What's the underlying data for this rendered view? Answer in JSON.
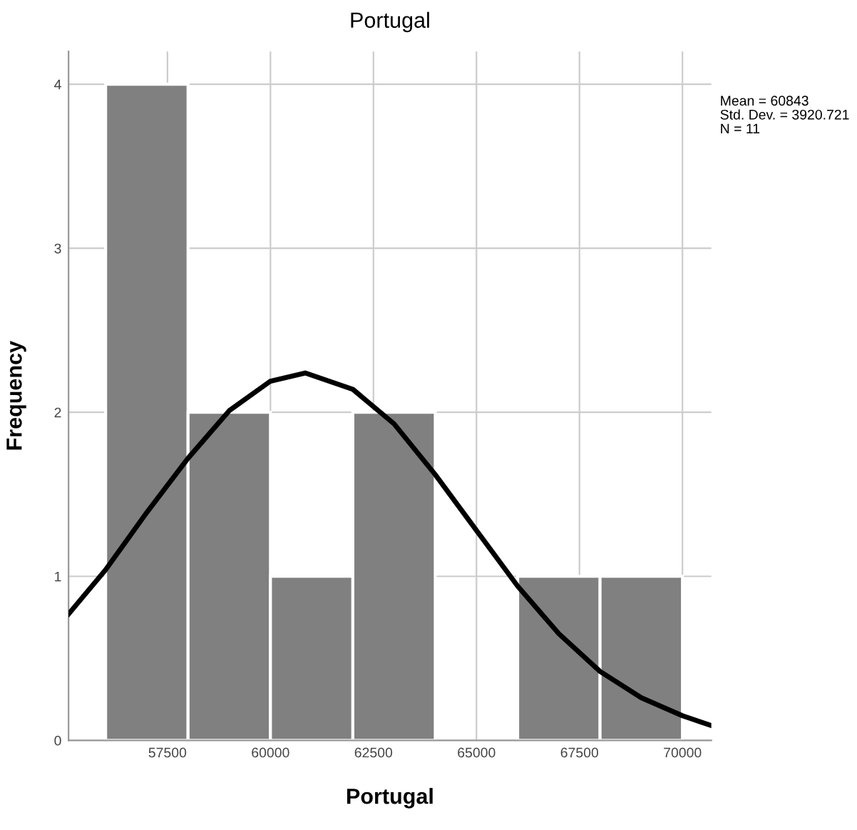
{
  "chart_data": {
    "type": "histogram",
    "title": "Portugal",
    "xlabel": "Portugal",
    "ylabel": "Frequency",
    "bins": [
      56000,
      58000,
      60000,
      62000,
      64000,
      66000,
      68000,
      70000
    ],
    "values": [
      4,
      2,
      1,
      2,
      0,
      1,
      1
    ],
    "color": "#808080",
    "series": [
      {
        "type": "line",
        "color": "#000000",
        "x": [
          55100,
          56000,
          57000,
          58000,
          59000,
          60000,
          60843,
          62000,
          63000,
          64000,
          65000,
          66000,
          67000,
          68000,
          69000,
          70000,
          70700
        ],
        "values": [
          0.77,
          1.04,
          1.39,
          1.72,
          2.01,
          2.19,
          2.24,
          2.14,
          1.93,
          1.62,
          1.28,
          0.94,
          0.65,
          0.42,
          0.26,
          0.15,
          0.09
        ]
      }
    ],
    "xlim": [
      55100,
      70700
    ],
    "xticks": [
      57500,
      60000,
      62500,
      65000,
      67500,
      70000
    ],
    "ylim": [
      0,
      4.2
    ],
    "yticks": [
      0,
      1,
      2,
      3,
      4
    ],
    "grid": true,
    "annotations": [
      "Mean = 60843\nStd. Dev. = 3920.721\nN = 11"
    ]
  }
}
